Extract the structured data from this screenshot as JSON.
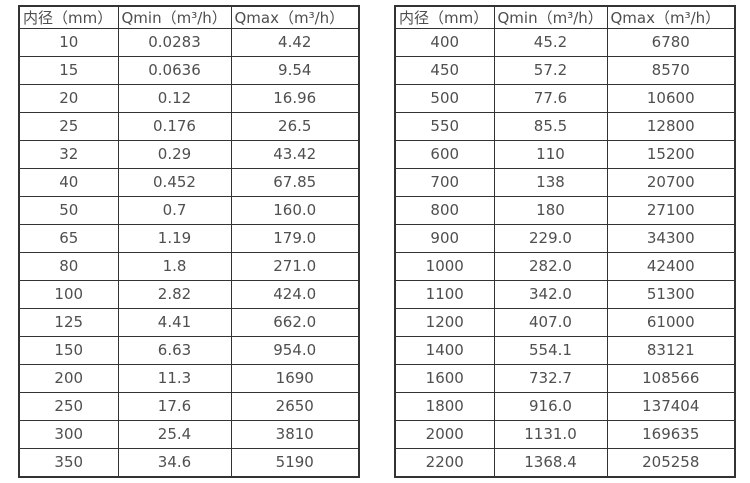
{
  "tables": [
    {
      "name": "flow-spec-table-small-diameters",
      "headers": [
        "内径（mm）",
        "Qmin（m³/h）",
        "Qmax（m³/h）"
      ],
      "rows": [
        [
          "10",
          "0.0283",
          "4.42"
        ],
        [
          "15",
          "0.0636",
          "9.54"
        ],
        [
          "20",
          "0.12",
          "16.96"
        ],
        [
          "25",
          "0.176",
          "26.5"
        ],
        [
          "32",
          "0.29",
          "43.42"
        ],
        [
          "40",
          "0.452",
          "67.85"
        ],
        [
          "50",
          "0.7",
          "160.0"
        ],
        [
          "65",
          "1.19",
          "179.0"
        ],
        [
          "80",
          "1.8",
          "271.0"
        ],
        [
          "100",
          "2.82",
          "424.0"
        ],
        [
          "125",
          "4.41",
          "662.0"
        ],
        [
          "150",
          "6.63",
          "954.0"
        ],
        [
          "200",
          "11.3",
          "1690"
        ],
        [
          "250",
          "17.6",
          "2650"
        ],
        [
          "300",
          "25.4",
          "3810"
        ],
        [
          "350",
          "34.6",
          "5190"
        ]
      ]
    },
    {
      "name": "flow-spec-table-large-diameters",
      "headers": [
        "内径（mm）",
        "Qmin（m³/h）",
        "Qmax（m³/h）"
      ],
      "rows": [
        [
          "400",
          "45.2",
          "6780"
        ],
        [
          "450",
          "57.2",
          "8570"
        ],
        [
          "500",
          "77.6",
          "10600"
        ],
        [
          "550",
          "85.5",
          "12800"
        ],
        [
          "600",
          "110",
          "15200"
        ],
        [
          "700",
          "138",
          "20700"
        ],
        [
          "800",
          "180",
          "27100"
        ],
        [
          "900",
          "229.0",
          "34300"
        ],
        [
          "1000",
          "282.0",
          "42400"
        ],
        [
          "1100",
          "342.0",
          "51300"
        ],
        [
          "1200",
          "407.0",
          "61000"
        ],
        [
          "1400",
          "554.1",
          "83121"
        ],
        [
          "1600",
          "732.7",
          "108566"
        ],
        [
          "1800",
          "916.0",
          "137404"
        ],
        [
          "2000",
          "1131.0",
          "169635"
        ],
        [
          "2200",
          "1368.4",
          "205258"
        ]
      ]
    }
  ],
  "colors": {
    "border": "#333333",
    "text": "#4f4f4f",
    "background": "#ffffff"
  }
}
